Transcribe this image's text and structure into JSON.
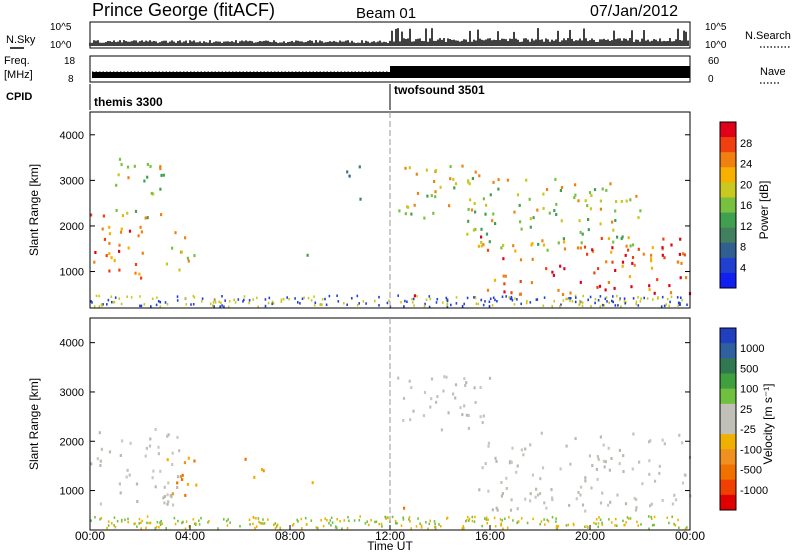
{
  "header": {
    "station": "Prince George (fitACF)",
    "beam": "Beam 01",
    "date": "07/Jan/2012"
  },
  "top_panels": {
    "nsky_label": "N.Sky",
    "nsky_ticks": [
      "10^5",
      "10^0"
    ],
    "nsearch_label": "N.Search",
    "nsearch_ticks": [
      "10^5",
      "10^0"
    ],
    "freq_label": "Freq.",
    "freq_unit": "[MHz]",
    "freq_ticks": [
      "18",
      "8"
    ],
    "nave_label": "Nave",
    "nave_ticks": [
      "60",
      "0"
    ],
    "cpid_label": "CPID",
    "cpid_segments": [
      {
        "name": "themis 3300",
        "start_hour": 0
      },
      {
        "name": "twofsound 3501",
        "start_hour": 12
      }
    ]
  },
  "x_axis": {
    "label": "Time UT",
    "ticks": [
      "00:00",
      "04:00",
      "08:00",
      "12:00",
      "16:00",
      "20:00",
      "00:00"
    ],
    "tick_hours": [
      0,
      4,
      8,
      12,
      16,
      20,
      24
    ]
  },
  "chart_data": [
    {
      "type": "heatmap",
      "name": "power-panel",
      "xlabel": "Time UT",
      "ylabel": "Slant Range [km]",
      "xlim": [
        0,
        24
      ],
      "ylim": [
        200,
        4500
      ],
      "y_ticks": [
        1000,
        2000,
        3000,
        4000
      ],
      "colorbar": {
        "label": "Power [dB]",
        "ticks": [
          "28",
          "24",
          "20",
          "16",
          "12",
          "8",
          "4"
        ],
        "colors": [
          "#e0001a",
          "#f04010",
          "#f08010",
          "#f8b000",
          "#c8c820",
          "#78c040",
          "#40a050",
          "#408060",
          "#306090",
          "#2040d0",
          "#1020f0"
        ]
      },
      "features": [
        {
          "t0": 0.0,
          "t1": 2.2,
          "r0": 800,
          "r1": 2400,
          "level": "high"
        },
        {
          "t0": 1.0,
          "t1": 3.0,
          "r0": 2000,
          "r1": 3500,
          "level": "medium"
        },
        {
          "t0": 3.0,
          "t1": 4.2,
          "r0": 900,
          "r1": 1900,
          "level": "medium"
        },
        {
          "t0": 8.6,
          "t1": 8.9,
          "r0": 1100,
          "r1": 1500,
          "level": "medium"
        },
        {
          "t0": 10.2,
          "t1": 10.8,
          "r0": 2600,
          "r1": 3400,
          "level": "low"
        },
        {
          "t0": 12.2,
          "t1": 15.8,
          "r0": 2200,
          "r1": 3400,
          "level": "medium"
        },
        {
          "t0": 12.4,
          "t1": 13.0,
          "r0": 500,
          "r1": 700,
          "level": "high"
        },
        {
          "t0": 15.5,
          "t1": 24.0,
          "r0": 500,
          "r1": 1800,
          "level": "high"
        },
        {
          "t0": 15.0,
          "t1": 22.0,
          "r0": 1500,
          "r1": 3100,
          "level": "medium"
        }
      ]
    },
    {
      "type": "heatmap",
      "name": "velocity-panel",
      "xlabel": "Time UT",
      "ylabel": "Slant Range [km]",
      "xlim": [
        0,
        24
      ],
      "ylim": [
        200,
        4500
      ],
      "y_ticks": [
        1000,
        2000,
        3000,
        4000
      ],
      "colorbar": {
        "label": "Velocity [m s⁻¹]",
        "ticks": [
          "1000",
          "500",
          "100",
          "25",
          "-25",
          "-100",
          "-500",
          "-1000"
        ],
        "colors": [
          "#2040c0",
          "#3060a0",
          "#307850",
          "#40a040",
          "#70c040",
          "#c0c0b8",
          "#c0c0b8",
          "#f0b000",
          "#f09020",
          "#f07000",
          "#f04000",
          "#e00000"
        ]
      },
      "features": [
        {
          "t0": 0.0,
          "t1": 3.6,
          "r0": 700,
          "r1": 2300,
          "level": "grey"
        },
        {
          "t0": 3.0,
          "t1": 4.6,
          "r0": 900,
          "r1": 1800,
          "level": "orange"
        },
        {
          "t0": 6.0,
          "t1": 7.0,
          "r0": 1200,
          "r1": 1700,
          "level": "orange"
        },
        {
          "t0": 8.7,
          "t1": 9.0,
          "r0": 800,
          "r1": 1200,
          "level": "orange"
        },
        {
          "t0": 12.2,
          "t1": 16.0,
          "r0": 2200,
          "r1": 3400,
          "level": "grey"
        },
        {
          "t0": 15.5,
          "t1": 24.0,
          "r0": 600,
          "r1": 2200,
          "level": "grey"
        },
        {
          "t0": 12.4,
          "t1": 13.0,
          "r0": 500,
          "r1": 700,
          "level": "orange"
        }
      ]
    }
  ]
}
